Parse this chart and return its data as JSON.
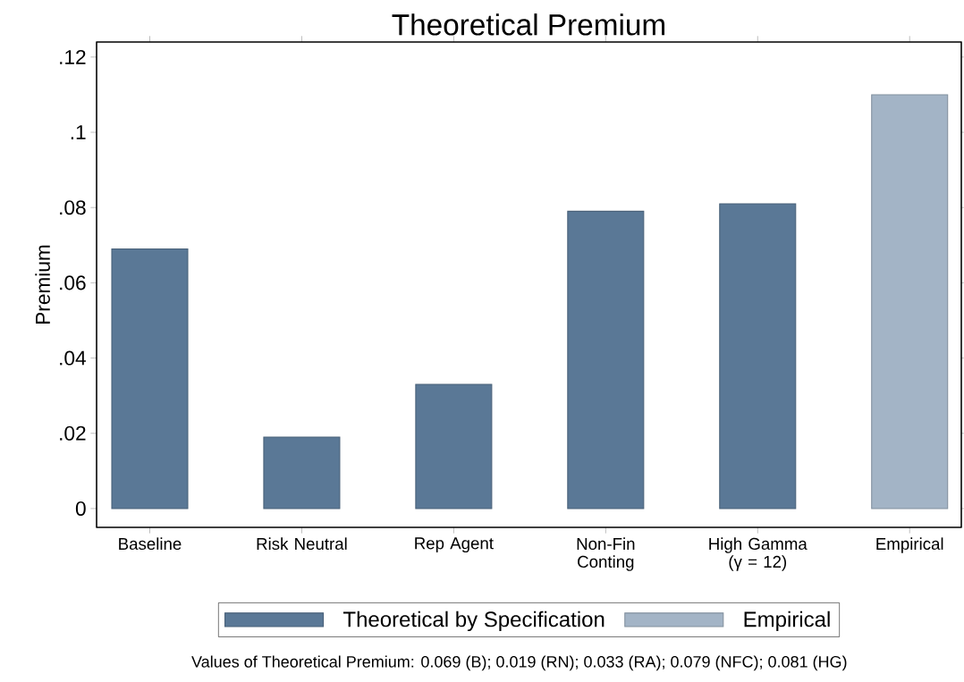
{
  "chart_data": {
    "type": "bar",
    "title": "Theoretical Premium",
    "ylabel": "Premium",
    "categories": [
      "Baseline",
      "Risk Neutral",
      "Rep Agent",
      "Non-Fin Conting",
      "High Gamma (γ = 12)",
      "Empirical"
    ],
    "series": [
      {
        "name": "Theoretical by Specification",
        "color": "#5a7896",
        "values": [
          0.069,
          0.019,
          0.033,
          0.079,
          0.081,
          null
        ]
      },
      {
        "name": "Empirical",
        "color": "#a3b4c6",
        "values": [
          null,
          null,
          null,
          null,
          null,
          0.11
        ]
      }
    ],
    "ylim": [
      -0.005,
      0.124
    ],
    "yticks": [
      0,
      {
        "value": 0.02,
        "label": ".02"
      },
      {
        "value": 0.04,
        "label": ".04"
      },
      {
        "value": 0.06,
        "label": ".06"
      },
      {
        "value": 0.08,
        "label": ".08"
      },
      {
        "value": 0.1,
        "label": ".1"
      },
      {
        "value": 0.12,
        "label": ".12"
      }
    ],
    "grid": false,
    "legend": "bottom",
    "annotations": [
      "Values of Theoretical Premium: 0.069 (B); 0.019 (RN); 0.033 (RA); 0.079 (NFC); 0.081 (HG)"
    ]
  }
}
